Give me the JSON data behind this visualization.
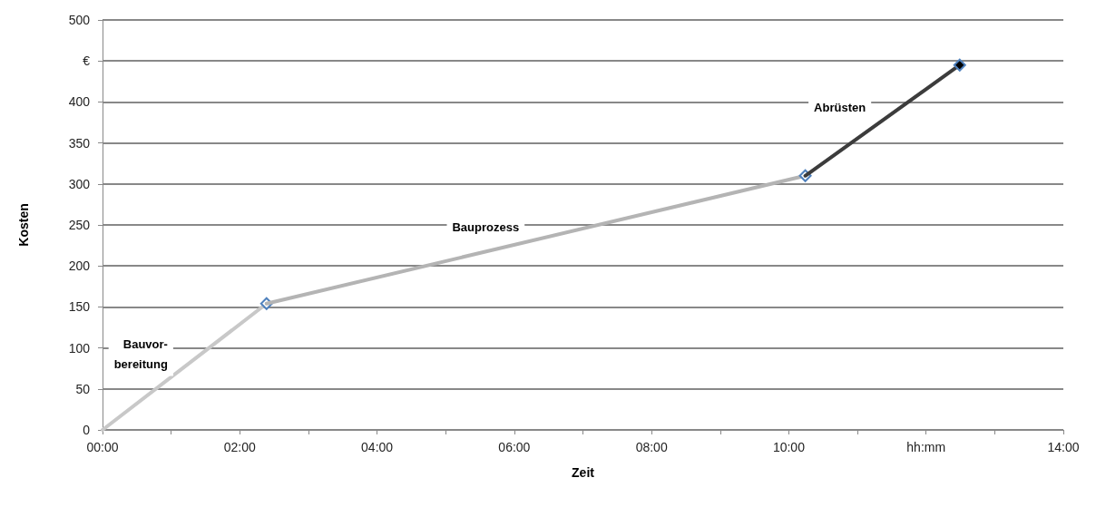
{
  "chart_data": {
    "type": "line",
    "xlabel": "Zeit",
    "ylabel": "Kosten",
    "series": [
      {
        "name": "Bauvor-\nbereitung",
        "x": [
          0,
          2.39
        ],
        "values": [
          0,
          154
        ],
        "color": "#c8c8c8"
      },
      {
        "name": "Bauprozess",
        "x": [
          2.39,
          10.24
        ],
        "values": [
          154,
          310
        ],
        "color": "#b4b4b4"
      },
      {
        "name": "Abrüsten",
        "x": [
          10.24,
          12.49
        ],
        "values": [
          310,
          445
        ],
        "color": "#3c3c3c"
      }
    ],
    "xlim": [
      0,
      14
    ],
    "xticks": [
      {
        "value": 0,
        "label": "00:00"
      },
      {
        "value": 1,
        "label": null
      },
      {
        "value": 2,
        "label": "02:00"
      },
      {
        "value": 3,
        "label": null
      },
      {
        "value": 4,
        "label": "04:00"
      },
      {
        "value": 5,
        "label": null
      },
      {
        "value": 6,
        "label": "06:00"
      },
      {
        "value": 7,
        "label": null
      },
      {
        "value": 8,
        "label": "08:00"
      },
      {
        "value": 9,
        "label": null
      },
      {
        "value": 10,
        "label": "10:00"
      },
      {
        "value": 11,
        "label": null
      },
      {
        "value": 12,
        "label": "hh:mm"
      },
      {
        "value": 13,
        "label": null
      },
      {
        "value": 14,
        "label": "14:00"
      }
    ],
    "ylim": [
      0,
      500
    ],
    "yticks": [
      0,
      50,
      100,
      150,
      200,
      250,
      300,
      350,
      400,
      {
        "value": 450,
        "label": "€"
      },
      500
    ],
    "grid": "y",
    "marker": "diamond",
    "line_style": "solid"
  }
}
